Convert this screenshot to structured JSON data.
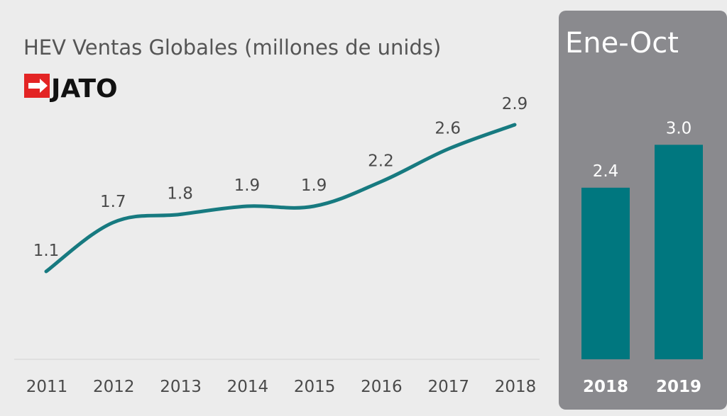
{
  "title": "HEV Ventas Globales (millones de unids)",
  "logo_text": "JATO",
  "colors": {
    "background": "#ececec",
    "line": "#177a80",
    "bar": "#00777f",
    "panel": "#8a8a8e",
    "logo_red": "#e32424"
  },
  "chart_data": [
    {
      "type": "line",
      "title": "HEV Ventas Globales (millones de unids)",
      "categories": [
        "2011",
        "2012",
        "2013",
        "2014",
        "2015",
        "2016",
        "2017",
        "2018"
      ],
      "series": [
        {
          "values": [
            1.1,
            1.7,
            1.8,
            1.9,
            1.9,
            2.2,
            2.6,
            2.9
          ]
        }
      ],
      "data_labels": [
        "1.1",
        "1.7",
        "1.8",
        "1.9",
        "1.9",
        "2.2",
        "2.6",
        "2.9"
      ],
      "grid": false,
      "legend": "none"
    },
    {
      "type": "bar",
      "title": "Ene-Oct",
      "categories": [
        "2018",
        "2019"
      ],
      "values": [
        2.4,
        3.0
      ],
      "data_labels": [
        "2.4",
        "3.0"
      ],
      "ylim": [
        0,
        3.3
      ],
      "grid": false,
      "legend": "none"
    }
  ]
}
